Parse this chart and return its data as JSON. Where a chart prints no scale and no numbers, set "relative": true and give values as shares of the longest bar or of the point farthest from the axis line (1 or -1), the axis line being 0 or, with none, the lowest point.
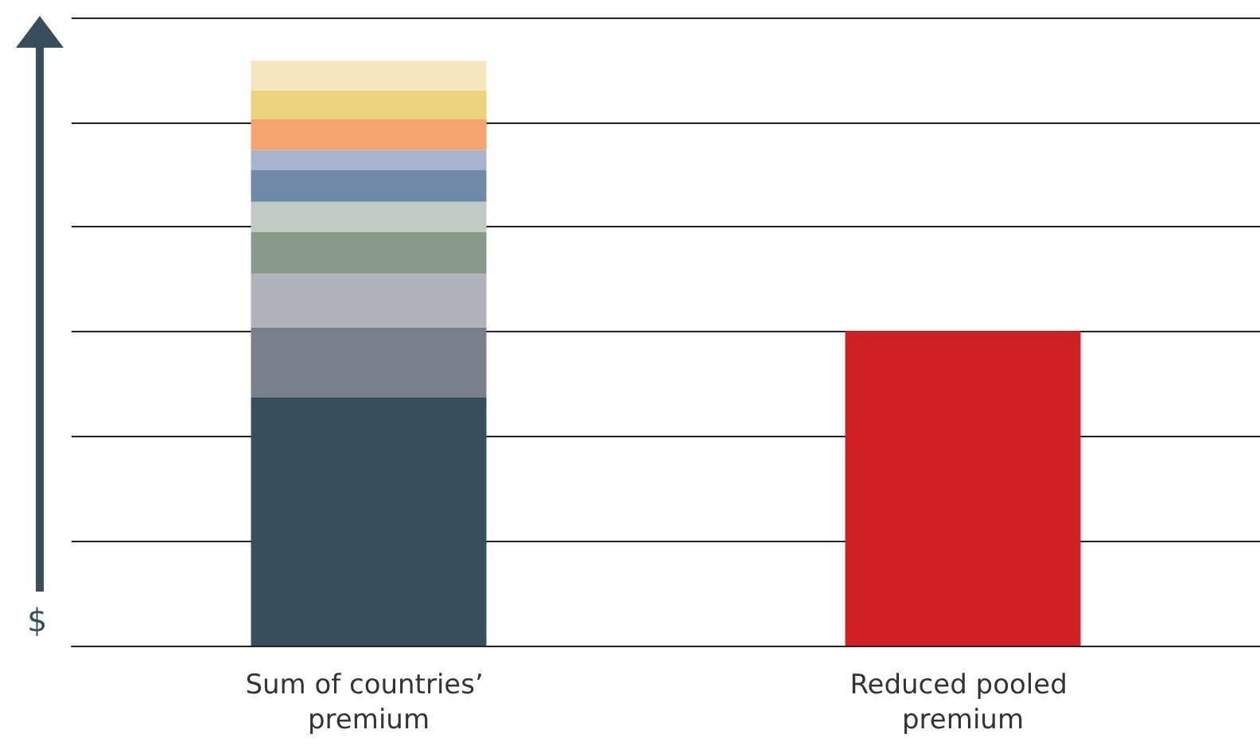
{
  "chart_data": {
    "type": "bar",
    "stacked": true,
    "relative": true,
    "grid": "y",
    "ylabel": "$",
    "categories": [
      "Sum of countries’ premium",
      "Reduced pooled premium"
    ],
    "series": [
      {
        "color": "#364f5b",
        "values": [
          0.424,
          null
        ]
      },
      {
        "color": "#797f8b",
        "values": [
          0.12,
          null
        ]
      },
      {
        "color": "#b0b2bb",
        "values": [
          0.092,
          null
        ]
      },
      {
        "color": "#879a8a",
        "values": [
          0.071,
          null
        ]
      },
      {
        "color": "#c0cac1",
        "values": [
          0.052,
          null
        ]
      },
      {
        "color": "#7089ab",
        "values": [
          0.054,
          null
        ]
      },
      {
        "color": "#a9b4cc",
        "values": [
          0.035,
          null
        ]
      },
      {
        "color": "#f4a46e",
        "values": [
          0.052,
          null
        ]
      },
      {
        "color": "#ecd47e",
        "values": [
          0.049,
          null
        ]
      },
      {
        "color": "#f5e6bf",
        "values": [
          0.051,
          null
        ]
      },
      {
        "color": "#d22027",
        "values": [
          null,
          0.538
        ]
      }
    ]
  }
}
